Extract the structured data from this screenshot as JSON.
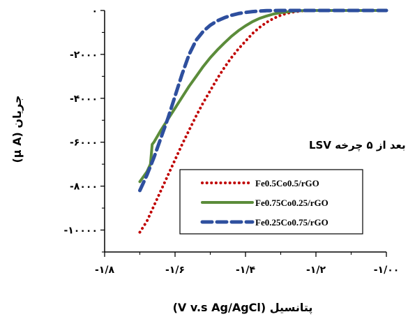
{
  "chart_data": {
    "type": "line",
    "title": "",
    "annotation": "بعد از ۵ چرخه LSV",
    "xlabel": "پتانسیل (V v.s Ag/AgCl)",
    "ylabel": "جریان (µ A)",
    "xlim": [
      -1.8,
      -1.0
    ],
    "ylim": [
      -11000,
      0
    ],
    "x_ticks": [
      {
        "value": -1.8,
        "label": "-۱/۸"
      },
      {
        "value": -1.6,
        "label": "-۱/۶"
      },
      {
        "value": -1.4,
        "label": "-۱/۴"
      },
      {
        "value": -1.2,
        "label": "-۱/۲"
      },
      {
        "value": -1.0,
        "label": "-۱/۰۰"
      }
    ],
    "y_ticks": [
      {
        "value": 0,
        "label": "۰"
      },
      {
        "value": -2000,
        "label": "-۲۰۰۰"
      },
      {
        "value": -4000,
        "label": "-۴۰۰۰"
      },
      {
        "value": -6000,
        "label": "-۶۰۰۰"
      },
      {
        "value": -8000,
        "label": "-۸۰۰۰"
      },
      {
        "value": -10000,
        "label": "-۱۰۰۰۰"
      }
    ],
    "grid": false,
    "legend_position": "lower-right",
    "series": [
      {
        "name": "Fe0.5Co0.5/rGO",
        "color": "#c00000",
        "style": "dotted",
        "x": [
          -1.7,
          -1.68,
          -1.66,
          -1.64,
          -1.62,
          -1.6,
          -1.58,
          -1.56,
          -1.54,
          -1.52,
          -1.5,
          -1.48,
          -1.46,
          -1.44,
          -1.42,
          -1.4,
          -1.38,
          -1.36,
          -1.34,
          -1.32,
          -1.3,
          -1.28,
          -1.26,
          -1.24,
          -1.22,
          -1.2,
          -1.18,
          -1.16,
          -1.0
        ],
        "y": [
          -10100,
          -9600,
          -8900,
          -8200,
          -7500,
          -6800,
          -6100,
          -5450,
          -4800,
          -4200,
          -3650,
          -3100,
          -2600,
          -2150,
          -1750,
          -1400,
          -1050,
          -770,
          -540,
          -360,
          -220,
          -120,
          -60,
          -20,
          -5,
          0,
          0,
          0,
          0
        ]
      },
      {
        "name": "Fe0.75Co0.25/rGO",
        "color": "#5b8c3a",
        "style": "solid",
        "x": [
          -1.7,
          -1.68,
          -1.67,
          -1.665,
          -1.66,
          -1.64,
          -1.62,
          -1.6,
          -1.58,
          -1.56,
          -1.54,
          -1.52,
          -1.5,
          -1.48,
          -1.46,
          -1.44,
          -1.42,
          -1.4,
          -1.38,
          -1.36,
          -1.34,
          -1.32,
          -1.3,
          -1.28,
          -1.26,
          -1.24,
          -1.2,
          -1.16,
          -1.0
        ],
        "y": [
          -7800,
          -7350,
          -7000,
          -6100,
          -6000,
          -5450,
          -4950,
          -4450,
          -3950,
          -3450,
          -3000,
          -2550,
          -2150,
          -1800,
          -1480,
          -1180,
          -920,
          -700,
          -510,
          -360,
          -250,
          -160,
          -100,
          -60,
          -30,
          -10,
          0,
          0,
          0
        ]
      },
      {
        "name": "Fe0.25Co0.75/rGO",
        "color": "#2e4f9e",
        "style": "dashed",
        "x": [
          -1.7,
          -1.68,
          -1.66,
          -1.64,
          -1.62,
          -1.6,
          -1.58,
          -1.56,
          -1.54,
          -1.52,
          -1.5,
          -1.48,
          -1.46,
          -1.44,
          -1.42,
          -1.4,
          -1.38,
          -1.36,
          -1.34,
          -1.3,
          -1.2,
          -1.0
        ],
        "y": [
          -8200,
          -7500,
          -6700,
          -5800,
          -4900,
          -3900,
          -2900,
          -2000,
          -1350,
          -950,
          -670,
          -470,
          -330,
          -220,
          -140,
          -90,
          -50,
          -25,
          -10,
          0,
          0,
          0
        ]
      }
    ]
  }
}
